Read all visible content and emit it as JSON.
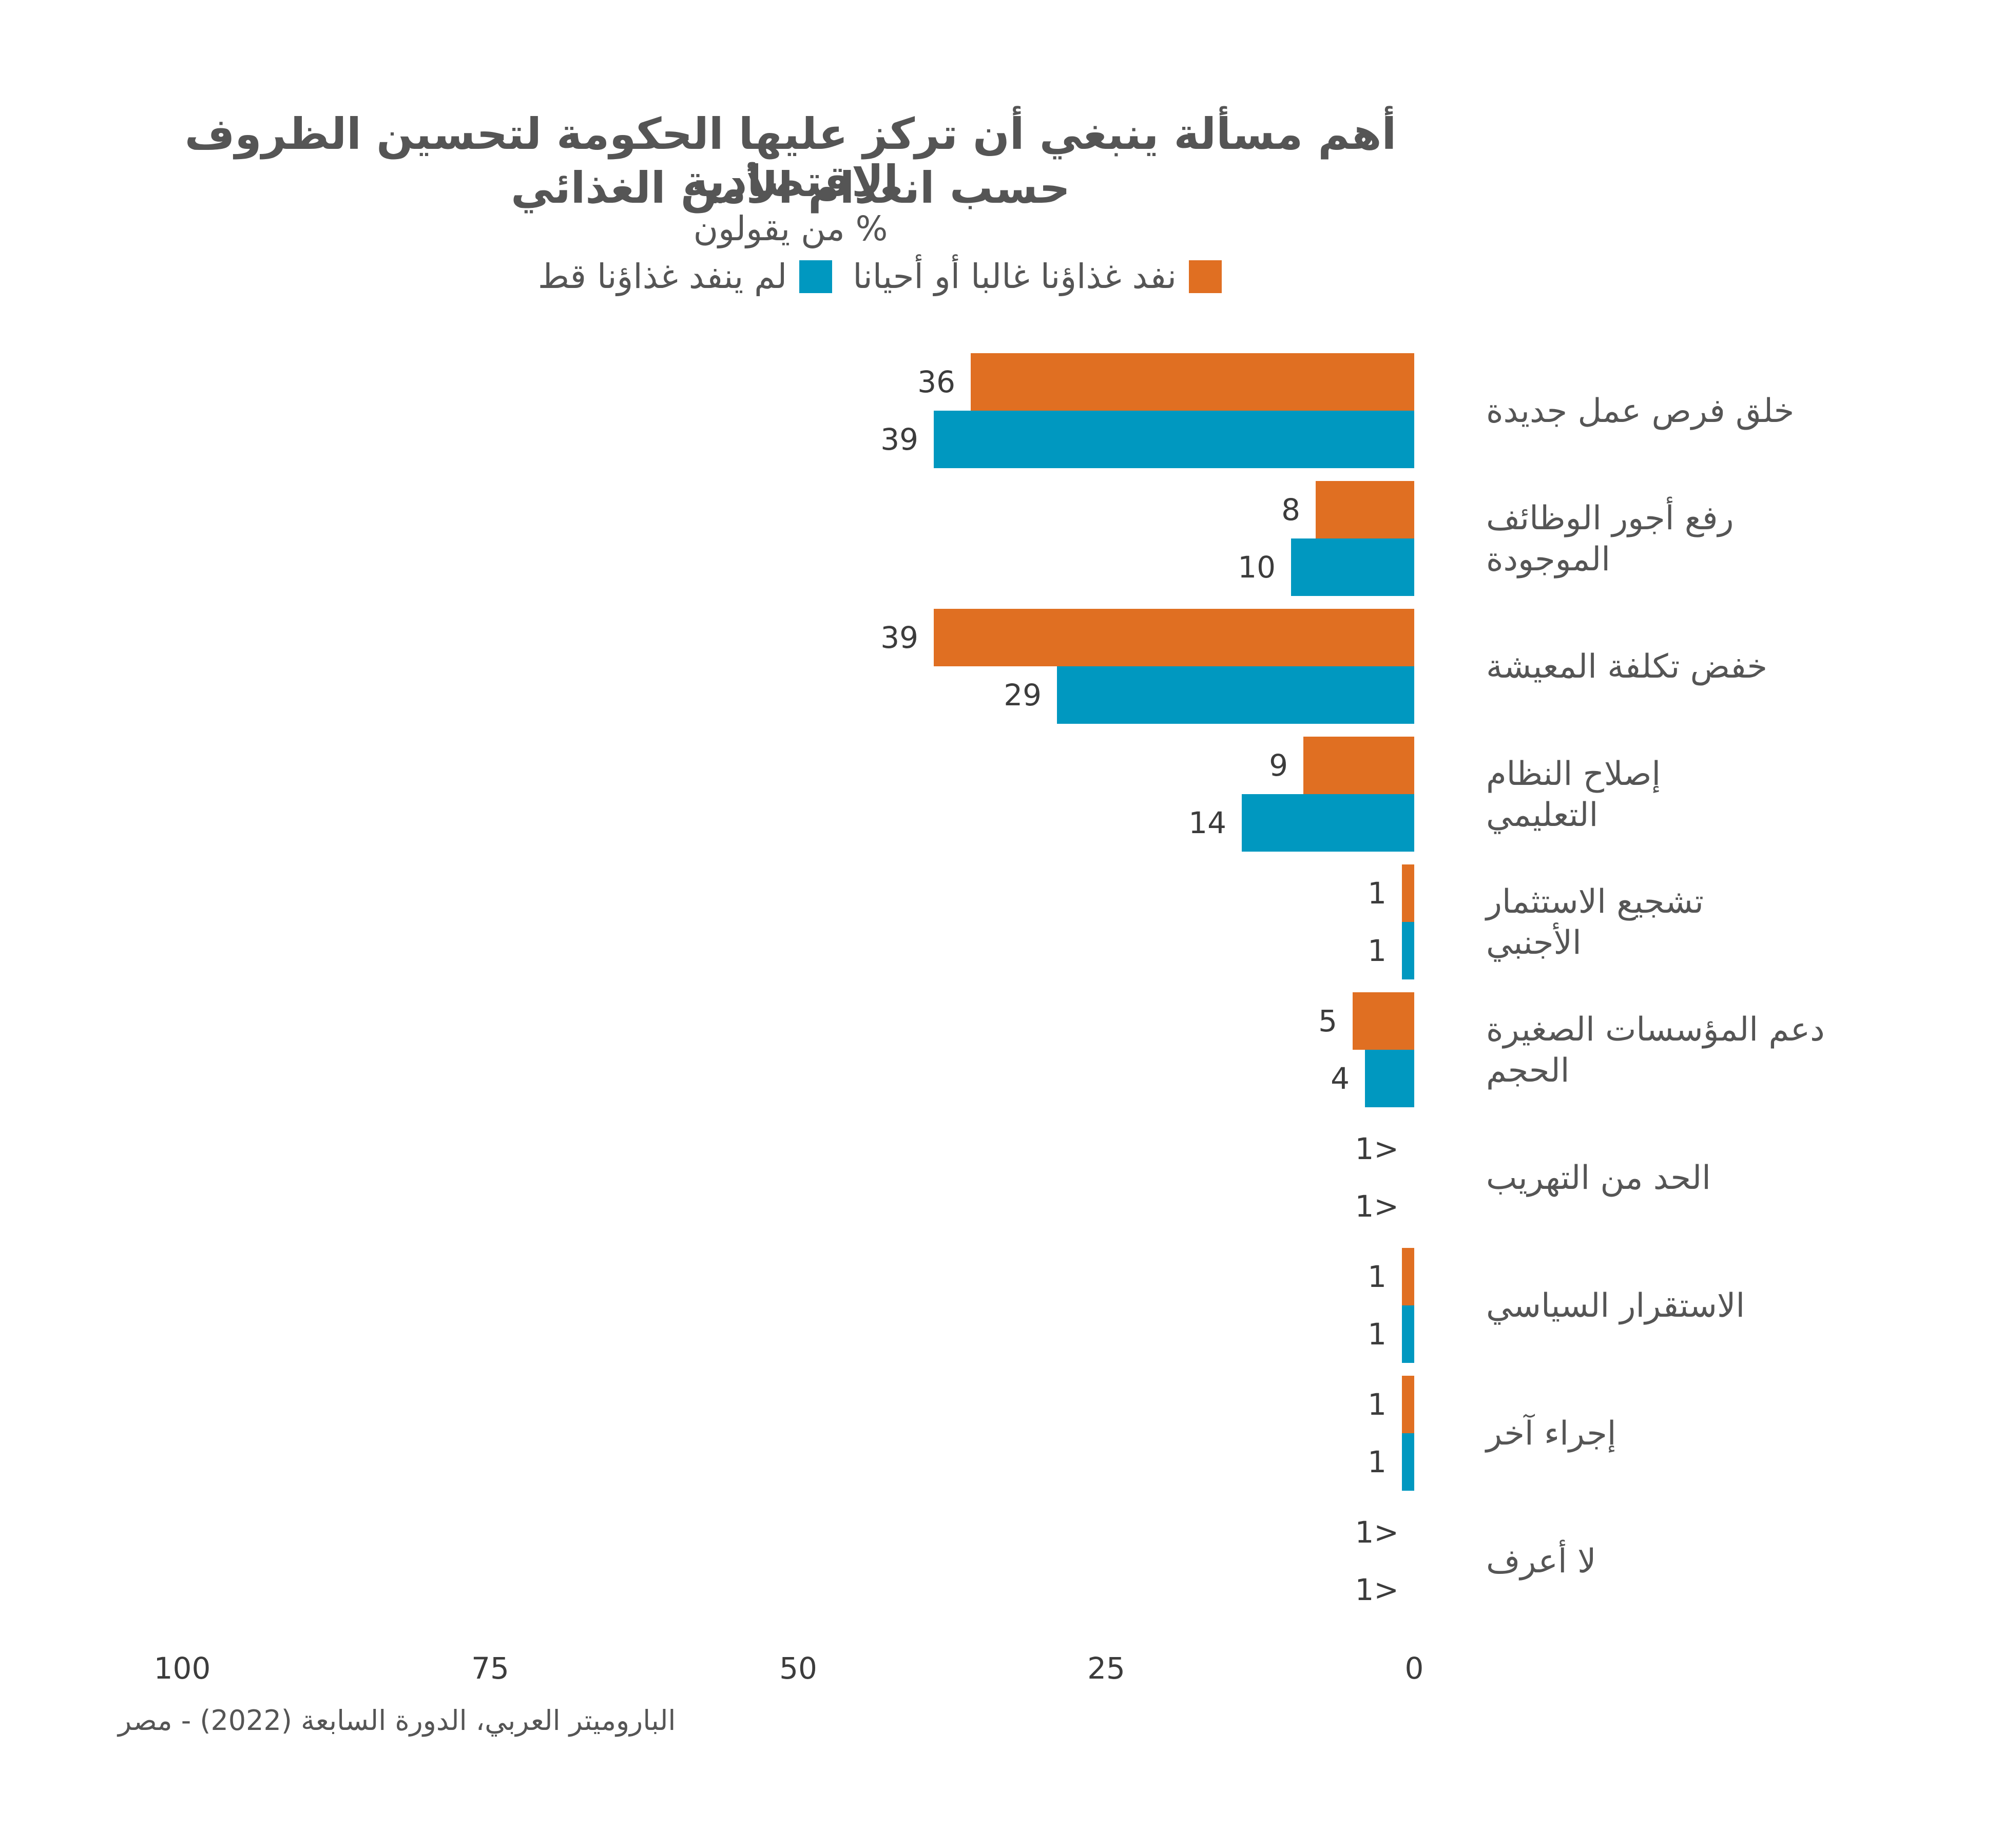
{
  "title_line1": "أهم مسألة ينبغي أن تركز عليها الحكومة لتحسين الظروف الاقتصادية",
  "title_line2": "حسب انعدام الأمن الغذائي",
  "subtitle": "% من يقولون",
  "source": "الباروميتر العربي، الدورة السابعة (2022) - مصر",
  "colors": {
    "series1": "#E06F22",
    "series2": "#0098C0"
  },
  "chart_data": {
    "type": "bar",
    "orientation": "horizontal",
    "axis_direction": "right-to-left",
    "categories": [
      "خلق فرص عمل جديدة",
      "رفع أجور الوظائف الموجودة",
      "خفض تكلفة المعيشة",
      "إصلاح النظام التعليمي",
      "تشجيع الاستثمار الأجنبي",
      "دعم المؤسسات الصغيرة الحجم",
      "الحد من التهريب",
      "الاستقرار السياسي",
      "إجراء آخر",
      "لا أعرف"
    ],
    "category_lines": [
      [
        "خلق فرص عمل جديدة"
      ],
      [
        "رفع أجور الوظائف",
        "الموجودة"
      ],
      [
        "خفض تكلفة المعيشة"
      ],
      [
        "إصلاح النظام",
        "التعليمي"
      ],
      [
        "تشجيع الاستثمار",
        "الأجنبي"
      ],
      [
        "دعم المؤسسات الصغيرة",
        "الحجم"
      ],
      [
        "الحد من التهريب"
      ],
      [
        "الاستقرار السياسي"
      ],
      [
        "إجراء آخر"
      ],
      [
        "لا أعرف"
      ]
    ],
    "series": [
      {
        "name": "نفد غذاؤنا غالبا أو أحيانا",
        "color": "#E06F22",
        "values": [
          36,
          8,
          39,
          9,
          1,
          5,
          0,
          1,
          1,
          0
        ],
        "labels": [
          "36",
          "8",
          "39",
          "9",
          "1",
          "5",
          "1>",
          "1",
          "1",
          "1>"
        ]
      },
      {
        "name": "لم ينفد غذاؤنا قط",
        "color": "#0098C0",
        "values": [
          39,
          10,
          29,
          14,
          1,
          4,
          0,
          1,
          1,
          0
        ],
        "labels": [
          "39",
          "10",
          "29",
          "14",
          "1",
          "4",
          "1>",
          "1",
          "1",
          "1>"
        ]
      }
    ],
    "xlim": [
      0,
      100
    ],
    "xticks": [
      "0",
      "25",
      "50",
      "75",
      "100"
    ],
    "legend_position": "top"
  }
}
